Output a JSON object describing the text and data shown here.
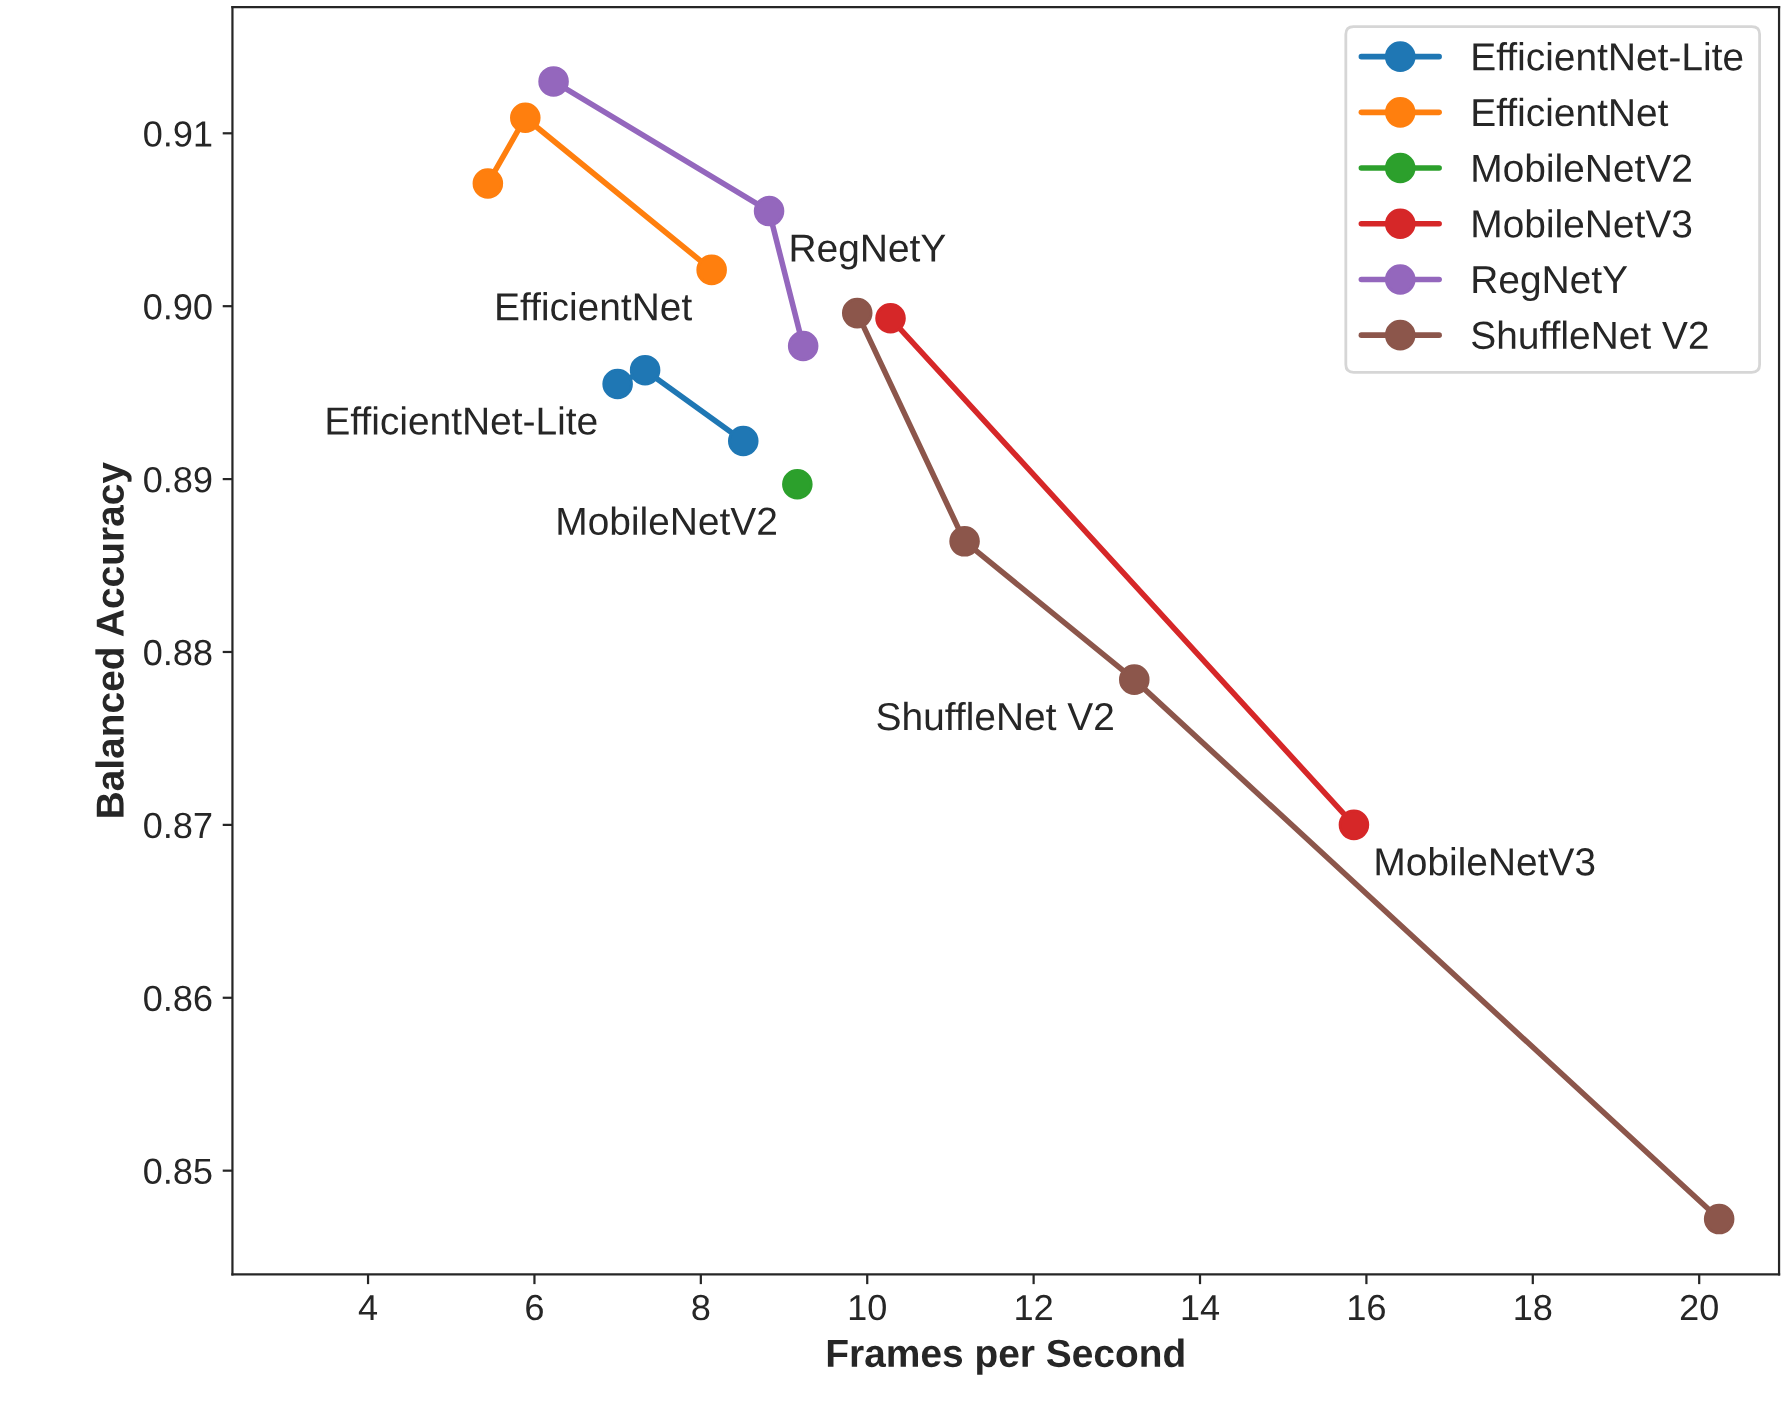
{
  "chart_data": {
    "type": "line",
    "xlabel": "Frames per Second",
    "ylabel": "Balanced Accuracy",
    "xlim": [
      2.37,
      20.96
    ],
    "ylim": [
      0.844,
      0.9173
    ],
    "xticks": [
      4,
      6,
      8,
      10,
      12,
      14,
      16,
      18,
      20
    ],
    "yticks": [
      {
        "value": 0.85,
        "label": "0.85"
      },
      {
        "value": 0.86,
        "label": "0.86"
      },
      {
        "value": 0.87,
        "label": "0.87"
      },
      {
        "value": 0.88,
        "label": "0.88"
      },
      {
        "value": 0.89,
        "label": "0.89"
      },
      {
        "value": 0.9,
        "label": "0.90"
      },
      {
        "value": 0.91,
        "label": "0.91"
      }
    ],
    "marker": "circle",
    "line_style": "solid",
    "grid": false,
    "legend": "top right",
    "series": [
      {
        "name": "EfficientNet-Lite",
        "color": "#1f77b4",
        "x": [
          7.0,
          7.33,
          8.51
        ],
        "values": [
          0.8955,
          0.8963,
          0.8922
        ]
      },
      {
        "name": "EfficientNet",
        "color": "#ff7f0e",
        "x": [
          5.44,
          5.89,
          8.13
        ],
        "values": [
          0.9071,
          0.9109,
          0.9021
        ]
      },
      {
        "name": "MobileNetV2",
        "color": "#2ca02c",
        "x": [
          9.16
        ],
        "values": [
          0.8897
        ]
      },
      {
        "name": "MobileNetV3",
        "color": "#d62728",
        "x": [
          10.28,
          15.85
        ],
        "values": [
          0.8993,
          0.87
        ]
      },
      {
        "name": "RegNetY",
        "color": "#9467bd",
        "x": [
          6.23,
          8.82,
          9.23
        ],
        "values": [
          0.913,
          0.9055,
          0.8977
        ]
      },
      {
        "name": "ShuffleNet V2",
        "color": "#8c564b",
        "x": [
          9.88,
          11.17,
          13.21,
          20.24
        ],
        "values": [
          0.8996,
          0.8864,
          0.8784,
          0.8472
        ]
      }
    ],
    "annotations": [
      {
        "text": "EfficientNet",
        "x": 8.13,
        "y": 0.9021
      },
      {
        "text": "RegNetY",
        "x": 8.82,
        "y": 0.9055
      },
      {
        "text": "EfficientNet-Lite",
        "x": 7.0,
        "y": 0.8955
      },
      {
        "text": "MobileNetV2",
        "x": 9.16,
        "y": 0.8897
      },
      {
        "text": "ShuffleNet V2",
        "x": 13.21,
        "y": 0.8784
      },
      {
        "text": "MobileNetV3",
        "x": 15.85,
        "y": 0.87
      }
    ]
  }
}
